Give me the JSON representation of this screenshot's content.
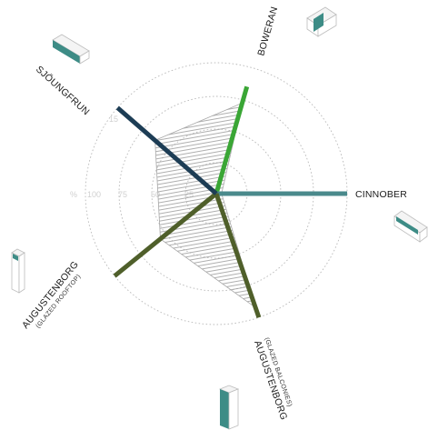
{
  "chart_data": {
    "type": "radar",
    "tick_labels": [
      "%",
      "100",
      "75",
      "50",
      "25"
    ],
    "rings": [
      25,
      50,
      75,
      100
    ],
    "range": [
      0,
      100
    ],
    "axes": [
      {
        "label": "BOWERAN",
        "sublabel": "",
        "value": 85,
        "color": "#3aa635"
      },
      {
        "label": "CINNOBER",
        "sublabel": "",
        "value": 100,
        "color": "#4a8a8c"
      },
      {
        "label": "AUGUSTENBORG",
        "sublabel": "(GLAZED BALCONIES)",
        "value": 100,
        "color": "#4f5f2a"
      },
      {
        "label": "AUGUSTENBORG",
        "sublabel": "(GLAZED ROOFTOP)",
        "value": 100,
        "color": "#4f5f2a"
      },
      {
        "label": "SJÖUNGFRUN",
        "sublabel": "",
        "value": 100,
        "color": "#1d3d55"
      }
    ],
    "area_values": [
      72,
      4,
      92,
      55,
      62
    ],
    "area_style": "hatched"
  },
  "icons": [
    {
      "name": "boweran-building-icon",
      "color": "#3d8c86"
    },
    {
      "name": "cinnober-building-icon",
      "color": "#3d8c86"
    },
    {
      "name": "augustenborg-balconies-building-icon",
      "color": "#3d8c86"
    },
    {
      "name": "augustenborg-rooftop-building-icon",
      "color": "#3d8c86"
    },
    {
      "name": "sjoungfrun-building-icon",
      "color": "#3d8c86"
    }
  ],
  "lbl": {
    "boweran": "BOWERAN",
    "cinnober": "CINNOBER",
    "aug_balc": "AUGUSTENBORG",
    "aug_balc_sub": "(GLAZED BALCONIES)",
    "aug_roof": "AUGUSTENBORG",
    "aug_roof_sub": "(GLAZED ROOFTOP)",
    "sjo": "SJÖUNGFRUN",
    "t_pct": "%",
    "t100": "100",
    "t75": "75",
    "t50": "50",
    "t25": "25",
    "marker": "15"
  }
}
